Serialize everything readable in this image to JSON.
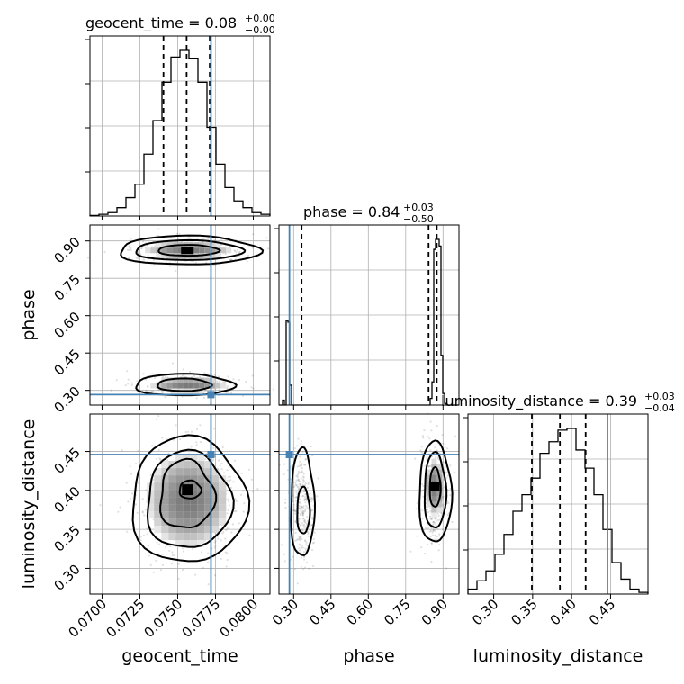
{
  "chart_data": {
    "type": "corner",
    "parameters": [
      {
        "name": "geocent_time",
        "title": {
          "text": "geocent_time = 0.08",
          "sup": "+0.00",
          "sub": "−0.00"
        },
        "range": [
          0.0692,
          0.0811
        ],
        "ticks": [
          0.07,
          0.0725,
          0.075,
          0.0775,
          0.08
        ],
        "tick_labels": [
          "0.0700",
          "0.0725",
          "0.0750",
          "0.0775",
          "0.0800"
        ],
        "quantiles": [
          0.07406,
          0.07559,
          0.07712
        ],
        "truth": 0.0772
      },
      {
        "name": "phase",
        "title": {
          "text": "phase = 0.84",
          "sup": "+0.03",
          "sub": "−0.50"
        },
        "range": [
          0.241,
          0.964
        ],
        "ticks": [
          0.3,
          0.45,
          0.6,
          0.75,
          0.9
        ],
        "tick_labels": [
          "0.30",
          "0.45",
          "0.60",
          "0.75",
          "0.90"
        ],
        "quantiles": [
          0.332,
          0.842,
          0.875
        ],
        "truth": 0.283
      },
      {
        "name": "luminosity_distance",
        "title": {
          "text": "luminosity_distance = 0.39",
          "sup": "+0.03",
          "sub": "−0.04"
        },
        "range": [
          0.267,
          0.498
        ],
        "ticks": [
          0.3,
          0.35,
          0.4,
          0.45
        ],
        "tick_labels": [
          "0.30",
          "0.35",
          "0.40",
          "0.45"
        ],
        "quantiles": [
          0.349,
          0.385,
          0.418
        ],
        "truth": 0.446
      }
    ],
    "histograms": {
      "geocent_time": [
        0.3,
        1,
        2,
        5,
        11,
        19,
        37,
        57,
        80,
        95,
        99,
        94,
        80,
        53,
        31,
        17,
        9,
        5,
        2,
        1
      ],
      "phase": [
        0,
        0,
        3,
        0,
        51,
        50,
        12,
        0,
        0,
        0,
        0,
        0,
        0,
        0,
        0,
        0,
        0,
        0,
        0,
        0,
        0,
        0,
        0,
        0,
        0,
        0,
        0,
        0,
        0,
        0,
        0,
        0,
        0,
        0,
        0,
        0,
        0,
        0,
        0,
        0,
        0,
        0,
        0,
        0,
        0,
        0,
        0,
        0,
        0,
        0,
        0,
        0,
        0,
        0,
        0,
        0,
        0,
        0,
        0,
        0,
        0,
        0,
        0,
        0,
        0,
        0,
        0,
        0,
        0,
        0,
        0,
        0,
        0,
        0,
        0,
        0,
        0,
        0,
        0,
        0,
        0,
        0,
        0,
        0,
        4,
        14,
        94,
        100,
        100,
        96,
        30,
        7,
        1,
        0,
        0,
        0,
        0,
        0,
        0,
        0
      ],
      "luminosity_distance": [
        3,
        8,
        14,
        24,
        36,
        50,
        60,
        70,
        85,
        92,
        99,
        100,
        87,
        76,
        60,
        39,
        19,
        9,
        3,
        1
      ]
    },
    "grid": true,
    "truth_color": "#4682b4",
    "contour_color": "#000000"
  }
}
